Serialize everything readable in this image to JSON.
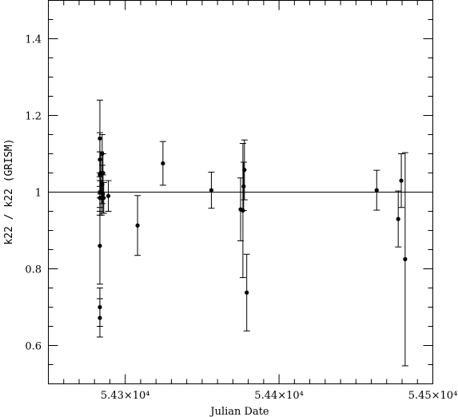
{
  "chart_data": {
    "type": "scatter",
    "xlabel": "Julian Date",
    "ylabel": "k22 / k22 (GRISM)",
    "xlim": [
      54250,
      54500
    ],
    "ylim": [
      0.5,
      1.5
    ],
    "x_ticks": [
      {
        "value": 54300,
        "label": "5.43×10⁴"
      },
      {
        "value": 54400,
        "label": "5.44×10⁴"
      },
      {
        "value": 54500,
        "label": "5.45×10⁴"
      }
    ],
    "x_minor_step": 10,
    "y_ticks": [
      {
        "value": 0.6,
        "label": "0.6"
      },
      {
        "value": 0.8,
        "label": "0.8"
      },
      {
        "value": 1.0,
        "label": "1"
      },
      {
        "value": 1.2,
        "label": "1.2"
      },
      {
        "value": 1.4,
        "label": "1.4"
      }
    ],
    "y_minor_step": 0.05,
    "reference_line": 1.0,
    "grid": false,
    "points": [
      {
        "x": 54283.5,
        "y": 1.14,
        "err": 0.1
      },
      {
        "x": 54283.5,
        "y": 1.085,
        "err": 0.07
      },
      {
        "x": 54283.5,
        "y": 1.045,
        "err": 0.06
      },
      {
        "x": 54283.5,
        "y": 1.0,
        "err": 0.05
      },
      {
        "x": 54283.5,
        "y": 0.985,
        "err": 0.045
      },
      {
        "x": 54283.5,
        "y": 0.86,
        "err": 0.1
      },
      {
        "x": 54283.5,
        "y": 0.7,
        "err": 0.05
      },
      {
        "x": 54283.5,
        "y": 0.672,
        "err": 0.05
      },
      {
        "x": 54284.0,
        "y": 1.05,
        "err": 0.055
      },
      {
        "x": 54284.5,
        "y": 0.985,
        "err": 0.045
      },
      {
        "x": 54285.0,
        "y": 1.1,
        "err": 0.05
      },
      {
        "x": 54285.0,
        "y": 1.02,
        "err": 0.05
      },
      {
        "x": 54285.5,
        "y": 1.05,
        "err": 0.05
      },
      {
        "x": 54285.5,
        "y": 0.995,
        "err": 0.05
      },
      {
        "x": 54286.0,
        "y": 0.985,
        "err": 0.04
      },
      {
        "x": 54289.0,
        "y": 0.99,
        "err": 0.04
      },
      {
        "x": 54308.0,
        "y": 0.913,
        "err": 0.078
      },
      {
        "x": 54324.5,
        "y": 1.075,
        "err": 0.057
      },
      {
        "x": 54356.0,
        "y": 1.005,
        "err": 0.047
      },
      {
        "x": 54375.0,
        "y": 0.955,
        "err": 0.082
      },
      {
        "x": 54376.5,
        "y": 0.952,
        "err": 0.175
      },
      {
        "x": 54377.0,
        "y": 1.015,
        "err": 0.063
      },
      {
        "x": 54377.5,
        "y": 1.058,
        "err": 0.078
      },
      {
        "x": 54379.0,
        "y": 0.738,
        "err": 0.1
      },
      {
        "x": 54463.5,
        "y": 1.005,
        "err": 0.052
      },
      {
        "x": 54477.5,
        "y": 0.93,
        "err": 0.073
      },
      {
        "x": 54479.5,
        "y": 1.03,
        "err": 0.07
      },
      {
        "x": 54482.0,
        "y": 0.825,
        "err": 0.278
      }
    ]
  }
}
